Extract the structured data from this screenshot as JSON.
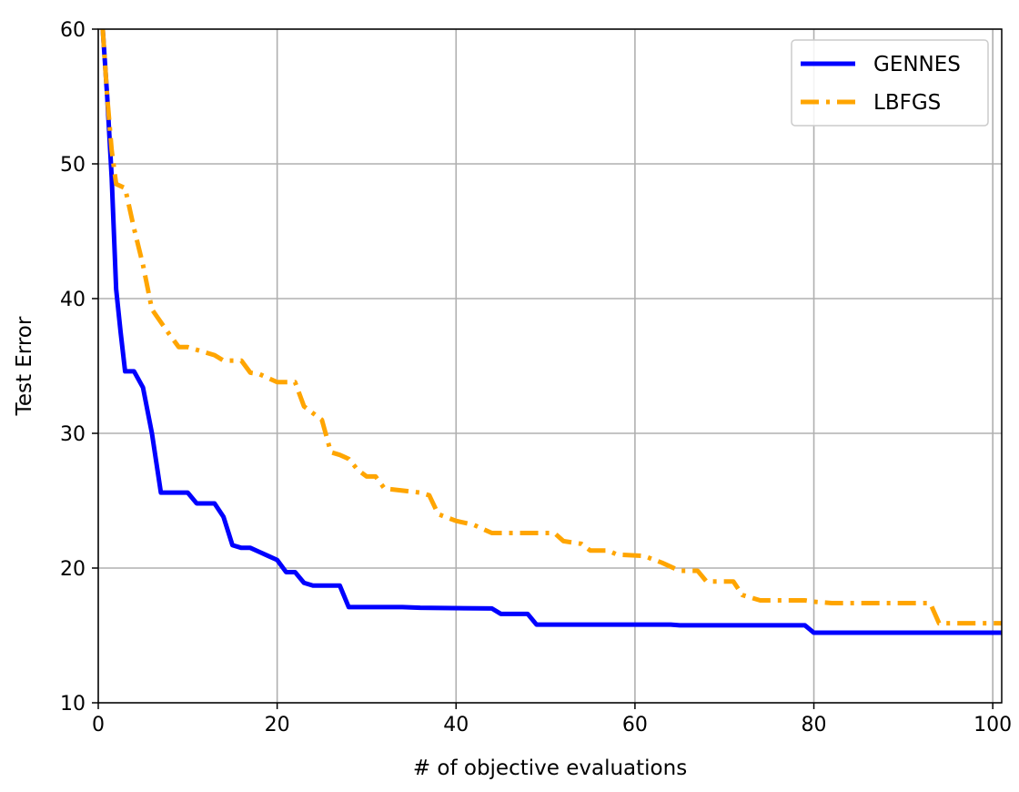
{
  "chart_data": {
    "type": "line",
    "title": "",
    "xlabel": "# of objective evaluations",
    "ylabel": "Test Error",
    "xlim": [
      0,
      101
    ],
    "ylim": [
      10,
      60
    ],
    "xticks": [
      0,
      20,
      40,
      60,
      80,
      100
    ],
    "yticks": [
      10,
      20,
      30,
      40,
      50,
      60
    ],
    "grid": true,
    "legend_position": "top-right",
    "series": [
      {
        "name": "GENNES",
        "color": "#0000ff",
        "style": "solid",
        "points": [
          [
            0.5,
            60
          ],
          [
            1,
            55
          ],
          [
            1.5,
            49
          ],
          [
            2,
            40.7
          ],
          [
            2.5,
            37.5
          ],
          [
            3,
            34.6
          ],
          [
            4,
            34.6
          ],
          [
            5,
            33.4
          ],
          [
            6,
            30
          ],
          [
            7,
            25.6
          ],
          [
            10,
            25.6
          ],
          [
            11,
            24.8
          ],
          [
            13,
            24.8
          ],
          [
            14,
            23.8
          ],
          [
            15,
            21.7
          ],
          [
            16,
            21.5
          ],
          [
            17,
            21.5
          ],
          [
            18,
            21.2
          ],
          [
            19,
            20.9
          ],
          [
            20,
            20.6
          ],
          [
            21,
            19.7
          ],
          [
            22,
            19.7
          ],
          [
            23,
            18.9
          ],
          [
            24,
            18.7
          ],
          [
            27,
            18.7
          ],
          [
            28,
            17.1
          ],
          [
            34,
            17.1
          ],
          [
            36,
            17.05
          ],
          [
            44,
            17.0
          ],
          [
            45,
            16.6
          ],
          [
            48,
            16.6
          ],
          [
            49,
            15.8
          ],
          [
            64,
            15.8
          ],
          [
            65,
            15.75
          ],
          [
            79,
            15.75
          ],
          [
            80,
            15.2
          ],
          [
            101,
            15.2
          ]
        ]
      },
      {
        "name": "LBFGS",
        "color": "#ffa500",
        "style": "dashdot",
        "points": [
          [
            0.5,
            60
          ],
          [
            1,
            55
          ],
          [
            1.5,
            51
          ],
          [
            2,
            48.5
          ],
          [
            3,
            48.2
          ],
          [
            4,
            45.2
          ],
          [
            5,
            42.5
          ],
          [
            6,
            39.2
          ],
          [
            8,
            37.3
          ],
          [
            9,
            36.4
          ],
          [
            10,
            36.4
          ],
          [
            11,
            36.2
          ],
          [
            13,
            35.8
          ],
          [
            14,
            35.4
          ],
          [
            16,
            35.4
          ],
          [
            17,
            34.5
          ],
          [
            18,
            34.4
          ],
          [
            20,
            33.8
          ],
          [
            22,
            33.8
          ],
          [
            23,
            32
          ],
          [
            25,
            31
          ],
          [
            26,
            28.6
          ],
          [
            27,
            28.4
          ],
          [
            28,
            28.1
          ],
          [
            29,
            27.3
          ],
          [
            30,
            26.8
          ],
          [
            31,
            26.8
          ],
          [
            32,
            25.9
          ],
          [
            36,
            25.6
          ],
          [
            37,
            25.4
          ],
          [
            38,
            24
          ],
          [
            40,
            23.5
          ],
          [
            42,
            23.2
          ],
          [
            43,
            22.9
          ],
          [
            44,
            22.6
          ],
          [
            51,
            22.6
          ],
          [
            52,
            22.0
          ],
          [
            54,
            21.8
          ],
          [
            55,
            21.3
          ],
          [
            57,
            21.3
          ],
          [
            58,
            21.0
          ],
          [
            61,
            20.9
          ],
          [
            63,
            20.4
          ],
          [
            65,
            19.8
          ],
          [
            67,
            19.8
          ],
          [
            68,
            19.0
          ],
          [
            71,
            19.0
          ],
          [
            72,
            18.0
          ],
          [
            74,
            17.6
          ],
          [
            79,
            17.6
          ],
          [
            80,
            17.5
          ],
          [
            82,
            17.4
          ],
          [
            93,
            17.4
          ],
          [
            94,
            15.9
          ],
          [
            101,
            15.9
          ]
        ]
      }
    ]
  }
}
